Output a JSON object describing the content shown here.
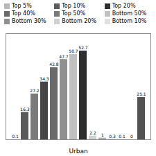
{
  "chart_data": {
    "type": "bar",
    "xlabel": "Urban",
    "categories": [
      null,
      null,
      null,
      null,
      null,
      null,
      null,
      null,
      null,
      null,
      null,
      null,
      null,
      null
    ],
    "values": [
      0.1,
      16.3,
      27.2,
      34.3,
      42.8,
      47.7,
      50.7,
      52.7,
      2.2,
      1.0,
      0.3,
      0.1,
      0.0,
      25.1
    ],
    "colors": [
      "#b8b8b8",
      "#5a5a5a",
      "#7a7a7a",
      "#454545",
      "#6a6a6a",
      "#909090",
      "#c0c0c0",
      "#2e2e2e",
      "#d0d0d0",
      "#b0b0b0",
      "#c8c8c8",
      "#d8d8d8",
      "#e0e0e0",
      "#525252"
    ],
    "ylim": [
      0,
      63
    ],
    "yticks": [],
    "tick_labels": false,
    "data_labels": true,
    "grid": false,
    "legend": "top",
    "legend_entries": [
      {
        "name": "Top 5%",
        "color": "#b8b8b8"
      },
      {
        "name": "Top 10%",
        "color": "#5a5a5a"
      },
      {
        "name": "Top 20%",
        "color": "#2e2e2e"
      },
      {
        "name": "Top 40%",
        "color": "#6a6a6a"
      },
      {
        "name": "Top 50%",
        "color": "#7a7a7a"
      },
      {
        "name": "Bottom 50%",
        "color": "#c0c0c0"
      },
      {
        "name": "Bottom 30%",
        "color": "#909090"
      },
      {
        "name": "Bottom 20%",
        "color": "#d0d0d0"
      },
      {
        "name": "Bottom 10%",
        "color": "#e0e0e0"
      }
    ]
  }
}
